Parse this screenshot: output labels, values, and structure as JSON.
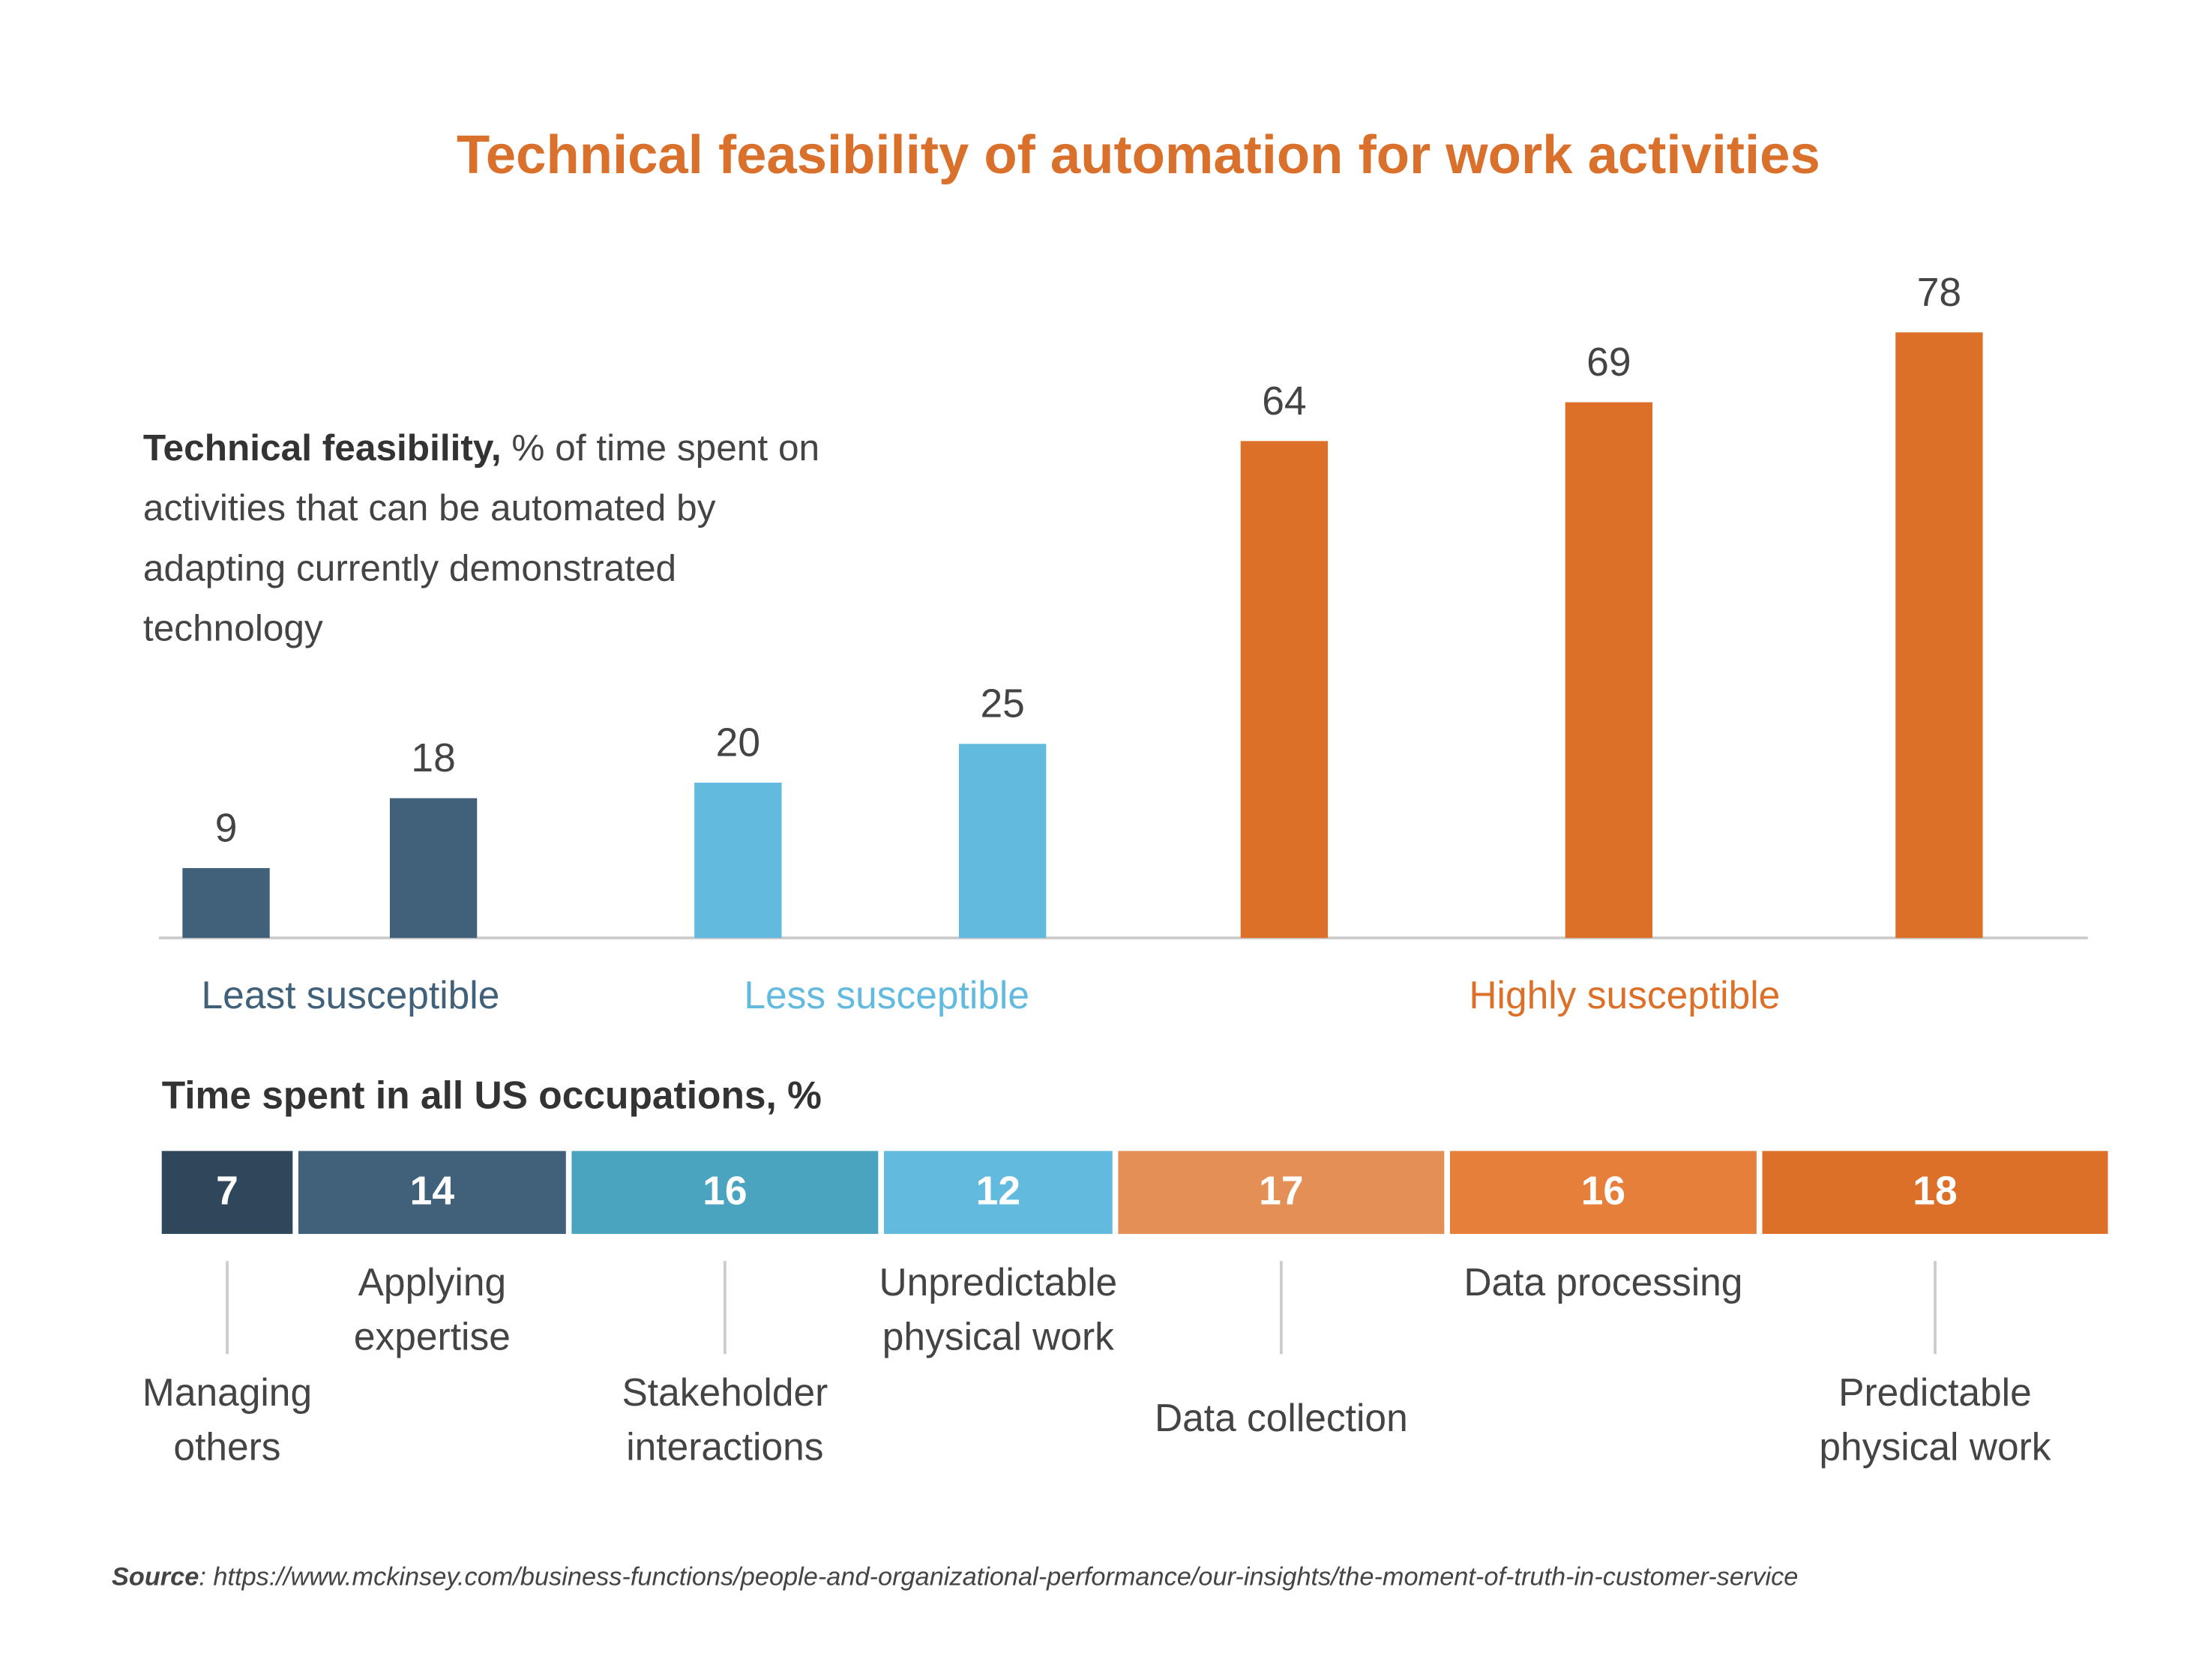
{
  "chart_data": [
    {
      "type": "bar",
      "title": "Technical feasibility of automation for work activities",
      "annotation_bold": "Technical feasibility,",
      "annotation": "% of time spent on activities that can be automated by adapting currently demonstrated technology",
      "categories": [
        null,
        null,
        null,
        null,
        null,
        null,
        null
      ],
      "series": [
        {
          "name": "Least susceptible",
          "color": "#41607a",
          "values": [
            9,
            18,
            null,
            null,
            null,
            null,
            null
          ]
        },
        {
          "name": "Less susceptible",
          "color": "#62badf",
          "values": [
            null,
            null,
            20,
            25,
            null,
            null,
            null
          ]
        },
        {
          "name": "Highly susceptible",
          "color": "#dc7029",
          "values": [
            null,
            null,
            null,
            null,
            64,
            69,
            78
          ]
        }
      ],
      "ylim": [
        0,
        85
      ]
    },
    {
      "type": "stacked_bar",
      "title": "Time spent in all US occupations, %",
      "categories": [
        "Managing others",
        "Applying expertise",
        "Stakeholder interactions",
        "Unpredictable physical work",
        "Data collection",
        "Data processing",
        "Predictable physical work"
      ],
      "values": [
        7,
        14,
        16,
        12,
        17,
        16,
        18
      ],
      "colors": [
        "#2e475b",
        "#41607a",
        "#4aa4bf",
        "#62badf",
        "#e38f55",
        "#e57f3a",
        "#dc7029"
      ],
      "xlim": [
        0,
        100
      ],
      "source_label": "Source",
      "source": ": https://www.mckinsey.com/business-functions/people-and-organizational-performance/our-insights/the-moment-of-truth-in-customer-service"
    }
  ]
}
